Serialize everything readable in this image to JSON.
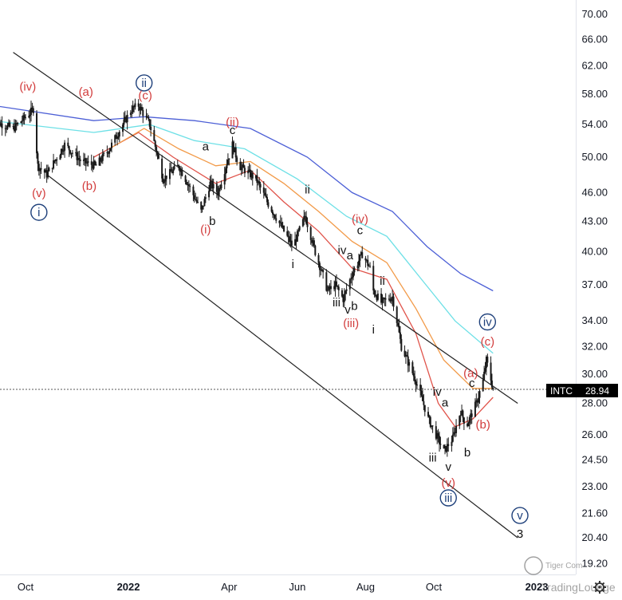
{
  "chart_data": {
    "type": "candlestick",
    "ticker": "INTC",
    "last_price": "28.94",
    "price_scale": "log",
    "y_ticks": [
      "70.00",
      "66.00",
      "62.00",
      "58.00",
      "54.00",
      "50.00",
      "46.00",
      "43.00",
      "40.00",
      "37.00",
      "34.00",
      "32.00",
      "30.00",
      "28.00",
      "26.00",
      "24.50",
      "23.00",
      "21.60",
      "20.40",
      "19.20"
    ],
    "x_ticks": [
      {
        "label": "Oct",
        "date": "2021-10-01"
      },
      {
        "label": "2022",
        "date": "2022-01-01",
        "bold": true
      },
      {
        "label": "Apr",
        "date": "2022-04-01"
      },
      {
        "label": "Jun",
        "date": "2022-06-01"
      },
      {
        "label": "Aug",
        "date": "2022-08-01"
      },
      {
        "label": "Oct",
        "date": "2022-10-01"
      },
      {
        "label": "2023",
        "date": "2023-01-01",
        "bold": true
      }
    ],
    "price_path": [
      [
        "2021-09-01",
        54.5
      ],
      [
        "2021-09-20",
        53.5
      ],
      [
        "2021-10-05",
        55.5
      ],
      [
        "2021-10-08",
        56.0
      ],
      [
        "2021-10-12",
        49.0
      ],
      [
        "2021-10-20",
        48.0
      ],
      [
        "2021-11-05",
        51.5
      ],
      [
        "2021-11-20",
        49.5
      ],
      [
        "2021-12-03",
        49.0
      ],
      [
        "2021-12-15",
        51.0
      ],
      [
        "2022-01-04",
        56.0
      ],
      [
        "2022-01-10",
        56.5
      ],
      [
        "2022-01-20",
        54.0
      ],
      [
        "2022-02-01",
        47.5
      ],
      [
        "2022-02-15",
        49.0
      ],
      [
        "2022-03-07",
        44.0
      ],
      [
        "2022-03-15",
        47.0
      ],
      [
        "2022-03-22",
        46.0
      ],
      [
        "2022-04-04",
        51.5
      ],
      [
        "2022-04-10",
        49.0
      ],
      [
        "2022-04-25",
        47.5
      ],
      [
        "2022-05-05",
        45.0
      ],
      [
        "2022-05-20",
        42.0
      ],
      [
        "2022-05-28",
        40.5
      ],
      [
        "2022-06-08",
        43.5
      ],
      [
        "2022-06-17",
        40.0
      ],
      [
        "2022-06-28",
        36.5
      ],
      [
        "2022-07-05",
        37.0
      ],
      [
        "2022-07-12",
        35.8
      ],
      [
        "2022-07-20",
        38.0
      ],
      [
        "2022-07-29",
        39.8
      ],
      [
        "2022-08-05",
        38.5
      ],
      [
        "2022-08-08",
        36.5
      ],
      [
        "2022-08-15",
        35.5
      ],
      [
        "2022-08-25",
        36.0
      ],
      [
        "2022-09-02",
        32.0
      ],
      [
        "2022-09-15",
        29.5
      ],
      [
        "2022-09-26",
        27.0
      ],
      [
        "2022-10-03",
        26.0
      ],
      [
        "2022-10-10",
        25.0
      ],
      [
        "2022-10-18",
        25.8
      ],
      [
        "2022-10-25",
        27.5
      ],
      [
        "2022-10-30",
        26.5
      ],
      [
        "2022-11-08",
        28.0
      ],
      [
        "2022-11-14",
        29.5
      ],
      [
        "2022-11-17",
        31.0
      ],
      [
        "2022-11-23",
        28.94
      ]
    ],
    "moving_averages": [
      {
        "color": "#e0534a",
        "points": [
          [
            "2021-12-01",
            50.0
          ],
          [
            "2022-01-10",
            53.0
          ],
          [
            "2022-02-10",
            50.0
          ],
          [
            "2022-03-20",
            47.0
          ],
          [
            "2022-04-20",
            48.5
          ],
          [
            "2022-05-20",
            45.0
          ],
          [
            "2022-06-20",
            42.0
          ],
          [
            "2022-07-20",
            38.5
          ],
          [
            "2022-08-20",
            37.5
          ],
          [
            "2022-09-15",
            33.0
          ],
          [
            "2022-10-05",
            28.0
          ],
          [
            "2022-10-20",
            26.5
          ],
          [
            "2022-11-05",
            27.0
          ],
          [
            "2022-11-23",
            28.4
          ]
        ]
      },
      {
        "color": "#f29a48",
        "points": [
          [
            "2021-12-15",
            51.0
          ],
          [
            "2022-01-15",
            53.5
          ],
          [
            "2022-02-15",
            51.0
          ],
          [
            "2022-03-20",
            49.0
          ],
          [
            "2022-04-20",
            49.5
          ],
          [
            "2022-05-20",
            47.0
          ],
          [
            "2022-06-20",
            44.0
          ],
          [
            "2022-07-20",
            41.0
          ],
          [
            "2022-08-20",
            39.0
          ],
          [
            "2022-09-15",
            35.0
          ],
          [
            "2022-10-10",
            31.0
          ],
          [
            "2022-11-05",
            29.0
          ],
          [
            "2022-11-23",
            29.0
          ]
        ]
      },
      {
        "color": "#6de0e6",
        "points": [
          [
            "2021-09-01",
            54.5
          ],
          [
            "2021-12-01",
            53.0
          ],
          [
            "2022-01-20",
            54.0
          ],
          [
            "2022-03-01",
            52.0
          ],
          [
            "2022-04-15",
            51.0
          ],
          [
            "2022-06-01",
            47.5
          ],
          [
            "2022-07-15",
            43.5
          ],
          [
            "2022-08-20",
            41.5
          ],
          [
            "2022-09-20",
            37.5
          ],
          [
            "2022-10-20",
            34.0
          ],
          [
            "2022-11-23",
            31.5
          ]
        ]
      },
      {
        "color": "#4c5fd6",
        "points": [
          [
            "2021-09-01",
            56.5
          ],
          [
            "2021-12-01",
            54.5
          ],
          [
            "2022-01-15",
            55.0
          ],
          [
            "2022-03-01",
            54.5
          ],
          [
            "2022-04-20",
            53.5
          ],
          [
            "2022-06-10",
            50.0
          ],
          [
            "2022-07-20",
            46.0
          ],
          [
            "2022-08-25",
            44.0
          ],
          [
            "2022-09-25",
            40.5
          ],
          [
            "2022-10-25",
            38.0
          ],
          [
            "2022-11-23",
            36.5
          ]
        ]
      }
    ],
    "trend_lines": [
      {
        "from": [
          "2021-09-20",
          64.0
        ],
        "to": [
          "2022-12-15",
          28.0
        ]
      },
      {
        "from": [
          "2021-10-20",
          48.0
        ],
        "to": [
          "2022-12-15",
          20.4
        ]
      }
    ],
    "wave_labels": [
      {
        "text": "(iv)",
        "date": "2021-10-03",
        "price": 58.5,
        "style": "red"
      },
      {
        "text": "(v)",
        "date": "2021-10-13",
        "price": 45.5,
        "style": "red"
      },
      {
        "text": "i",
        "date": "2021-10-13",
        "price": 43.5,
        "style": "blue-circle"
      },
      {
        "text": "(a)",
        "date": "2021-11-24",
        "price": 57.8,
        "style": "red"
      },
      {
        "text": "(b)",
        "date": "2021-11-27",
        "price": 46.3,
        "style": "red"
      },
      {
        "text": "ii",
        "date": "2022-01-15",
        "price": 59.0,
        "style": "blue-circle"
      },
      {
        "text": "(c)",
        "date": "2022-01-16",
        "price": 57.3,
        "style": "red"
      },
      {
        "text": "a",
        "date": "2022-03-11",
        "price": 50.8,
        "style": "black"
      },
      {
        "text": "(i)",
        "date": "2022-03-11",
        "price": 41.8,
        "style": "red"
      },
      {
        "text": "b",
        "date": "2022-03-17",
        "price": 42.6,
        "style": "black"
      },
      {
        "text": "(ii)",
        "date": "2022-04-04",
        "price": 53.8,
        "style": "red"
      },
      {
        "text": "c",
        "date": "2022-04-04",
        "price": 52.8,
        "style": "black"
      },
      {
        "text": "ii",
        "date": "2022-06-10",
        "price": 45.9,
        "style": "black"
      },
      {
        "text": "i",
        "date": "2022-05-28",
        "price": 38.5,
        "style": "black"
      },
      {
        "text": "iv",
        "date": "2022-07-11",
        "price": 39.8,
        "style": "black"
      },
      {
        "text": "a",
        "date": "2022-07-18",
        "price": 39.3,
        "style": "black"
      },
      {
        "text": "iii",
        "date": "2022-07-06",
        "price": 35.2,
        "style": "black"
      },
      {
        "text": "v",
        "date": "2022-07-16",
        "price": 34.6,
        "style": "black"
      },
      {
        "text": "b",
        "date": "2022-07-22",
        "price": 34.9,
        "style": "black"
      },
      {
        "text": "(iii)",
        "date": "2022-07-19",
        "price": 33.5,
        "style": "red"
      },
      {
        "text": "(iv)",
        "date": "2022-07-27",
        "price": 42.8,
        "style": "red"
      },
      {
        "text": "c",
        "date": "2022-07-27",
        "price": 41.7,
        "style": "black"
      },
      {
        "text": "ii",
        "date": "2022-08-16",
        "price": 37.0,
        "style": "black"
      },
      {
        "text": "i",
        "date": "2022-08-08",
        "price": 33.0,
        "style": "black"
      },
      {
        "text": "iv",
        "date": "2022-10-04",
        "price": 28.5,
        "style": "black"
      },
      {
        "text": "a",
        "date": "2022-10-11",
        "price": 27.8,
        "style": "black"
      },
      {
        "text": "iii",
        "date": "2022-09-30",
        "price": 24.4,
        "style": "black"
      },
      {
        "text": "v",
        "date": "2022-10-14",
        "price": 23.9,
        "style": "black"
      },
      {
        "text": "(v)",
        "date": "2022-10-14",
        "price": 23.0,
        "style": "red"
      },
      {
        "text": "iii",
        "date": "2022-10-14",
        "price": 22.2,
        "style": "blue-circle"
      },
      {
        "text": "b",
        "date": "2022-10-31",
        "price": 24.7,
        "style": "black"
      },
      {
        "text": "(a)",
        "date": "2022-11-03",
        "price": 29.8,
        "style": "red"
      },
      {
        "text": "c",
        "date": "2022-11-04",
        "price": 29.1,
        "style": "black"
      },
      {
        "text": "(b)",
        "date": "2022-11-14",
        "price": 26.4,
        "style": "red"
      },
      {
        "text": "iv",
        "date": "2022-11-18",
        "price": 33.6,
        "style": "blue-circle"
      },
      {
        "text": "(c)",
        "date": "2022-11-18",
        "price": 32.1,
        "style": "red"
      },
      {
        "text": "v",
        "date": "2022-12-17",
        "price": 21.3,
        "style": "blue-circle"
      },
      {
        "text": "3",
        "date": "2022-12-17",
        "price": 20.4,
        "style": "black-large"
      }
    ],
    "watermark": [
      "Tiger Com",
      "TradingLounge"
    ],
    "colors": {
      "candle": "#1a1a1a",
      "trend_line": "#222222",
      "red_label": "#d23c3c",
      "blue_label": "#1d3f7a",
      "price_tag_bg": "#000000",
      "axis_text": "#131722"
    }
  }
}
